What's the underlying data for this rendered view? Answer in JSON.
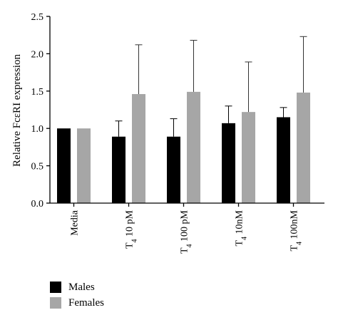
{
  "chart_data": {
    "type": "bar",
    "title": "",
    "xlabel": "",
    "ylabel": "Relative FcεRI expression",
    "ylim": [
      0,
      2.5
    ],
    "yticks": [
      "0.0",
      "0.5",
      "1.0",
      "1.5",
      "2.0",
      "2.5"
    ],
    "categories": [
      {
        "main": "Media",
        "sub": "",
        "rest": ""
      },
      {
        "main": "T",
        "sub": "4",
        "rest": " 10 pM"
      },
      {
        "main": "T",
        "sub": "4",
        "rest": " 100 pM"
      },
      {
        "main": "T",
        "sub": "4",
        "rest": " 10nM"
      },
      {
        "main": "T",
        "sub": "4",
        "rest": " 100nM"
      }
    ],
    "series": [
      {
        "name": "Males",
        "color": "#000000",
        "values": [
          1.0,
          0.89,
          0.89,
          1.07,
          1.15
        ],
        "error_upper": [
          0.0,
          0.21,
          0.24,
          0.23,
          0.13
        ]
      },
      {
        "name": "Females",
        "color": "#a6a6a6",
        "values": [
          1.0,
          1.46,
          1.49,
          1.22,
          1.48
        ],
        "error_upper": [
          0.0,
          0.66,
          0.69,
          0.67,
          0.75
        ]
      }
    ],
    "grid": false,
    "legend_position": "bottom-left"
  }
}
